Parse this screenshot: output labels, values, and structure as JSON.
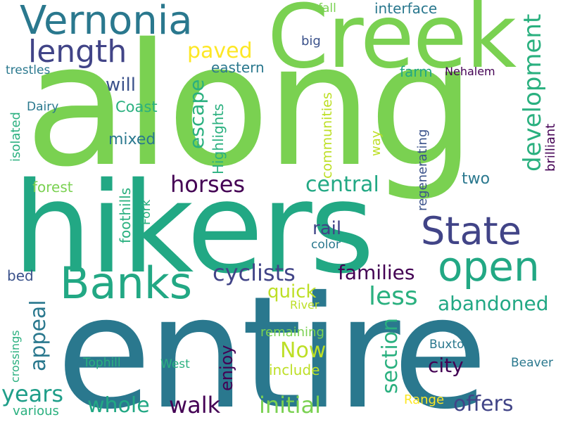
{
  "words": {
    "along": "along",
    "hikers": "hikers",
    "entire": "entire",
    "creek": "Creek",
    "vernonia": "Vernonia",
    "banks": "Banks",
    "state": "State",
    "open": "open",
    "length": "length",
    "development": "development",
    "paved": "paved",
    "horses": "horses",
    "central": "central",
    "cyclists": "cyclists",
    "families": "families",
    "section": "section",
    "initial": "initial",
    "walk": "walk",
    "whole": "whole",
    "years": "years",
    "appeal": "appeal",
    "less": "less",
    "abandoned": "abandoned",
    "offers": "offers",
    "now": "Now",
    "city": "city",
    "quick": "quick",
    "rail": "rail",
    "enjoy": "enjoy",
    "escape": "escape",
    "will": "will",
    "eastern": "eastern",
    "interface": "interface",
    "fall": "fall",
    "big": "big",
    "farm": "farm",
    "nehalem": "Nehalem",
    "trestles": "trestles",
    "dairy": "Dairy",
    "coast": "Coast",
    "mixed": "mixed",
    "isolated": "isolated",
    "forest": "forest",
    "foothills": "foothills",
    "fork": "Fork",
    "highlights": "Highlights",
    "communities": "communities",
    "way": "way",
    "regenerating": "regenerating",
    "brilliant": "brilliant",
    "two": "two",
    "color": "color",
    "bed": "bed",
    "crossings": "crossings",
    "river": "River",
    "remaining": "remaining",
    "include": "include",
    "buxton": "Buxton",
    "tophill": "Tophill",
    "west": "West",
    "beaver": "Beaver",
    "range": "Range",
    "various": "various"
  },
  "colors": {
    "green_light": "#7ad151",
    "green_mid": "#22a884",
    "teal": "#2a788e",
    "blue": "#414487",
    "purple": "#440154",
    "yellow": "#fde725",
    "yellow_green": "#bddf26",
    "sea_green": "#2ab07f",
    "cyan": "#1f9e89",
    "navy": "#3b528b"
  }
}
